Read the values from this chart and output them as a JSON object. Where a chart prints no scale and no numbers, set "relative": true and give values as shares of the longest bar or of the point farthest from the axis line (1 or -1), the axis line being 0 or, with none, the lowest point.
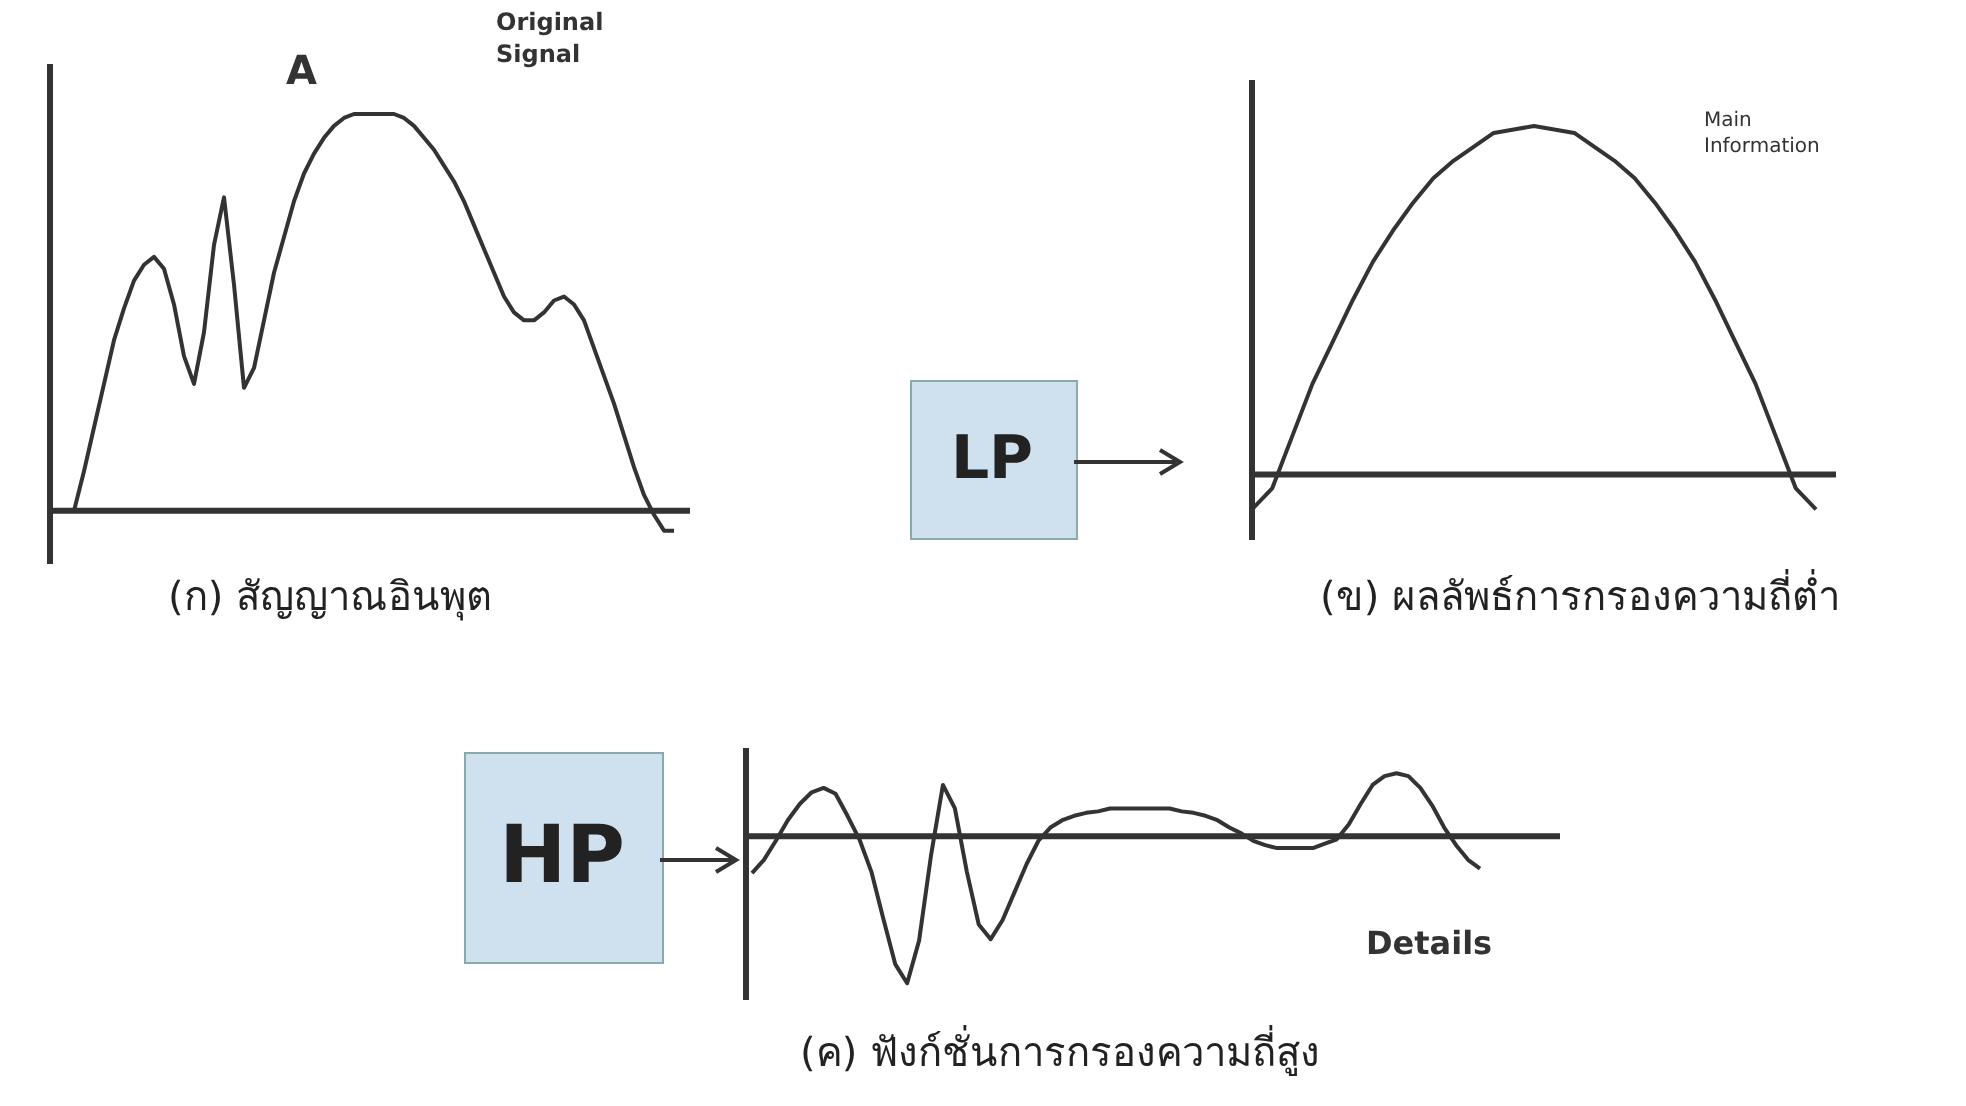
{
  "chart_data": [
    {
      "type": "line",
      "relative": true,
      "title": "(ก) สัญญาณอินพุต",
      "annotations": [
        "A",
        "Original Signal"
      ],
      "categories": [
        null,
        null,
        null,
        null,
        null,
        null,
        null,
        null,
        null,
        null,
        null,
        null,
        null,
        null,
        null,
        null,
        null,
        null,
        null,
        null,
        null,
        null,
        null,
        null,
        null,
        null,
        null,
        null,
        null,
        null,
        null,
        null,
        null,
        null,
        null,
        null,
        null,
        null,
        null,
        null,
        null,
        null,
        null,
        null,
        null,
        null,
        null,
        null,
        null,
        null,
        null,
        null,
        null,
        null,
        null,
        null,
        null,
        null,
        null,
        null,
        null
      ],
      "series": [
        {
          "color": "#333333",
          "values": [
            0,
            0.1,
            0.21,
            0.32,
            0.43,
            0.51,
            0.58,
            0.62,
            0.64,
            0.61,
            0.52,
            0.39,
            0.32,
            0.45,
            0.67,
            0.79,
            0.57,
            0.31,
            0.36,
            0.48,
            0.6,
            0.69,
            0.78,
            0.85,
            0.9,
            0.94,
            0.97,
            0.99,
            1,
            1,
            1,
            1,
            1,
            0.99,
            0.97,
            0.94,
            0.91,
            0.87,
            0.83,
            0.78,
            0.72,
            0.66,
            0.6,
            0.54,
            0.5,
            0.48,
            0.48,
            0.5,
            0.53,
            0.54,
            0.52,
            0.48,
            0.41,
            0.34,
            0.27,
            0.19,
            0.11,
            0.04,
            -0.01,
            -0.05,
            -0.05
          ]
        }
      ]
    },
    {
      "type": "line",
      "relative": true,
      "title": "(ข) ผลลัพธ์การกรองความถี่ต่ำ",
      "annotations": [
        "LP",
        "Main Information"
      ],
      "categories": [
        null,
        null,
        null,
        null,
        null,
        null,
        null,
        null,
        null,
        null,
        null,
        null,
        null,
        null,
        null,
        null,
        null,
        null,
        null,
        null,
        null,
        null,
        null,
        null,
        null,
        null,
        null,
        null,
        null
      ],
      "series": [
        {
          "color": "#333333",
          "values": [
            -0.1,
            -0.04,
            0.11,
            0.26,
            0.38,
            0.5,
            0.61,
            0.7,
            0.78,
            0.85,
            0.9,
            0.94,
            0.98,
            0.99,
            1,
            0.99,
            0.98,
            0.94,
            0.9,
            0.85,
            0.78,
            0.7,
            0.61,
            0.5,
            0.38,
            0.26,
            0.11,
            -0.04,
            -0.1
          ]
        }
      ]
    },
    {
      "type": "line",
      "relative": true,
      "title": "(ค) ฟังก์ชั่นการกรองความถี่สูง",
      "annotations": [
        "HP",
        "Details"
      ],
      "categories": [
        null,
        null,
        null,
        null,
        null,
        null,
        null,
        null,
        null,
        null,
        null,
        null,
        null,
        null,
        null,
        null,
        null,
        null,
        null,
        null,
        null,
        null,
        null,
        null,
        null,
        null,
        null,
        null,
        null,
        null,
        null,
        null,
        null,
        null,
        null,
        null,
        null,
        null,
        null,
        null,
        null,
        null,
        null,
        null,
        null,
        null,
        null,
        null,
        null,
        null,
        null,
        null,
        null,
        null,
        null,
        null,
        null,
        null,
        null,
        null,
        null,
        null
      ],
      "series": [
        {
          "color": "#333333",
          "values": [
            -0.25,
            -0.16,
            -0.03,
            0.11,
            0.22,
            0.3,
            0.33,
            0.29,
            0.14,
            -0.02,
            -0.24,
            -0.56,
            -0.87,
            -1,
            -0.71,
            -0.13,
            0.35,
            0.19,
            -0.24,
            -0.6,
            -0.7,
            -0.57,
            -0.38,
            -0.19,
            -0.03,
            0.06,
            0.11,
            0.14,
            0.16,
            0.17,
            0.19,
            0.19,
            0.19,
            0.19,
            0.19,
            0.19,
            0.17,
            0.16,
            0.14,
            0.11,
            0.06,
            0.02,
            -0.03,
            -0.06,
            -0.08,
            -0.08,
            -0.08,
            -0.08,
            -0.05,
            -0.02,
            0.08,
            0.22,
            0.35,
            0.41,
            0.43,
            0.41,
            0.33,
            0.21,
            0.06,
            -0.06,
            -0.16,
            -0.22
          ]
        }
      ]
    }
  ]
}
